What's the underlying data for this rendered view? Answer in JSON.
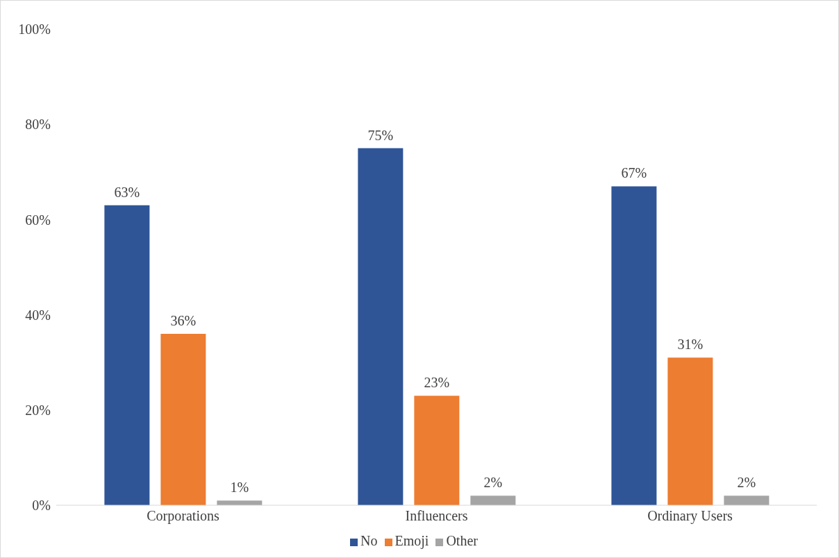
{
  "chart_data": {
    "type": "bar",
    "categories": [
      "Corporations",
      "Influencers",
      "Ordinary Users"
    ],
    "series": [
      {
        "name": "No",
        "color": "#2f5597",
        "values": [
          63,
          75,
          67
        ],
        "value_labels": [
          "63%",
          "75%",
          "67%"
        ]
      },
      {
        "name": "Emoji",
        "color": "#ed7d31",
        "values": [
          36,
          23,
          31
        ],
        "value_labels": [
          "36%",
          "23%",
          "31%"
        ]
      },
      {
        "name": "Other",
        "color": "#a5a5a5",
        "values": [
          1,
          2,
          2
        ],
        "value_labels": [
          "1%",
          "2%",
          "2%"
        ]
      }
    ],
    "ylim": [
      0,
      100
    ],
    "yticks": [
      {
        "value": 0,
        "label": "0%"
      },
      {
        "value": 20,
        "label": "20%"
      },
      {
        "value": 40,
        "label": "40%"
      },
      {
        "value": 60,
        "label": "60%"
      },
      {
        "value": 80,
        "label": "80%"
      },
      {
        "value": 100,
        "label": "100%"
      }
    ],
    "grid": false,
    "legend": "bottom"
  }
}
